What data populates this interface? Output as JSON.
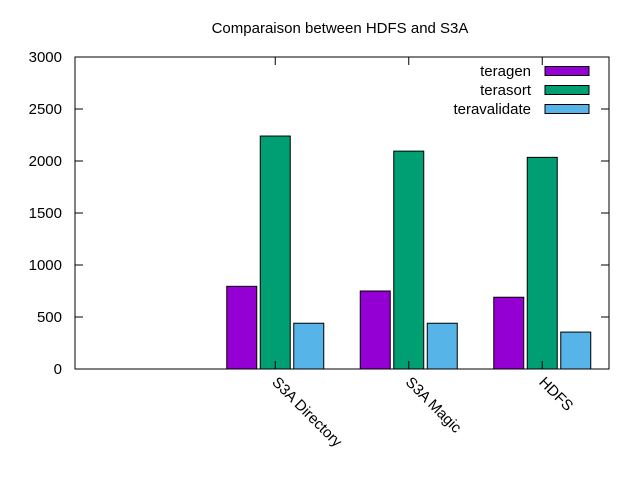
{
  "chart_data": {
    "type": "bar",
    "title": "Comparaison between HDFS and S3A",
    "xlabel": "",
    "ylabel": "",
    "categories": [
      "S3A Directory",
      "S3A Magic",
      "HDFS"
    ],
    "series": [
      {
        "name": "teragen",
        "values": [
          795,
          750,
          690
        ],
        "color": "#9400d3"
      },
      {
        "name": "terasort",
        "values": [
          2240,
          2095,
          2035
        ],
        "color": "#009e73"
      },
      {
        "name": "teravalidate",
        "values": [
          440,
          440,
          355
        ],
        "color": "#56b4e9"
      }
    ],
    "ylim": [
      0,
      3000
    ],
    "yticks": [
      0,
      500,
      1000,
      1500,
      2000,
      2500,
      3000
    ],
    "x_categories_range": [
      -0.5,
      3.5
    ],
    "x_category_positions": [
      1,
      2,
      3
    ],
    "xtick_label_rotation_deg": 45,
    "grid": false,
    "legend_position": "top-right"
  }
}
